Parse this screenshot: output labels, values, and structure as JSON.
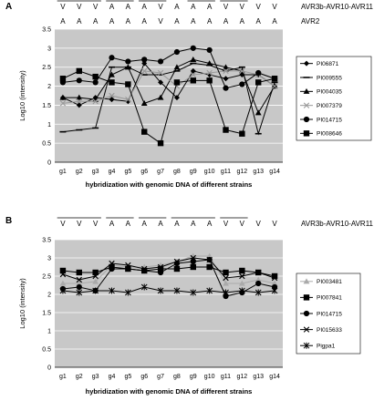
{
  "panels": [
    {
      "letter": "A",
      "annotations": [
        {
          "name": "AVR3b-AVR10-AVR11",
          "marks": [
            "V",
            "V",
            "V",
            "A",
            "A",
            "A",
            "V",
            "A",
            "A",
            "A",
            "V",
            "V",
            "V",
            "V"
          ],
          "underline_groups": [
            [
              1,
              3
            ],
            [
              4,
              5
            ],
            [
              6,
              7
            ],
            [
              9,
              10
            ],
            [
              11,
              12
            ]
          ]
        },
        {
          "name": "AVR2",
          "marks": [
            "A",
            "A",
            "A",
            "A",
            "A",
            "A",
            "V",
            "A",
            "A",
            "A",
            "A",
            "A",
            "A",
            "A"
          ],
          "underline_groups": []
        }
      ],
      "chart_data": {
        "type": "line",
        "categories": [
          "g1",
          "g2",
          "g3",
          "g4",
          "g5",
          "g6",
          "g7",
          "g8",
          "g9",
          "g10",
          "g11",
          "g12",
          "g13",
          "g14"
        ],
        "xlabel": "hybridization with genomic DNA of different strains",
        "ylabel": "Log10 (intensity)",
        "ylim": [
          0,
          3.5
        ],
        "yticks": [
          "0",
          "0.5",
          "1",
          "1.5",
          "2",
          "2.5",
          "3",
          "3.5"
        ],
        "grid": true,
        "legend_position": "right",
        "series": [
          {
            "name": "PI06871",
            "marker": "diamond",
            "color": "#000000",
            "values": [
              1.7,
              1.5,
              1.7,
              1.65,
              1.6,
              2.6,
              2.1,
              1.7,
              2.4,
              2.3,
              2.2,
              2.3,
              2.3,
              2.0
            ]
          },
          {
            "name": "PI009555",
            "marker": "dash",
            "color": "#000000",
            "values": [
              0.8,
              0.85,
              0.9,
              2.5,
              2.5,
              2.3,
              2.3,
              2.4,
              2.6,
              2.55,
              2.4,
              2.5,
              0.75,
              2.1
            ]
          },
          {
            "name": "PI004035",
            "marker": "triangle",
            "color": "#000000",
            "values": [
              1.7,
              1.7,
              1.65,
              2.3,
              2.5,
              1.55,
              1.7,
              2.5,
              2.7,
              2.6,
              2.5,
              2.4,
              1.3,
              2.0
            ]
          },
          {
            "name": "PI007379",
            "marker": "x",
            "color": "#999999",
            "values": [
              1.55,
              1.6,
              1.6,
              1.75,
              1.65,
              2.4,
              2.35,
              2.0,
              2.3,
              2.35,
              2.4,
              2.4,
              2.3,
              2.0
            ]
          },
          {
            "name": "PI014715",
            "marker": "circle",
            "color": "#000000",
            "values": [
              2.1,
              2.15,
              2.1,
              2.75,
              2.65,
              2.7,
              2.65,
              2.9,
              3.0,
              2.95,
              1.95,
              2.05,
              2.35,
              2.2
            ]
          },
          {
            "name": "PI008646",
            "marker": "square",
            "color": "#000000",
            "values": [
              2.2,
              2.4,
              2.25,
              2.1,
              2.05,
              0.8,
              0.5,
              2.1,
              2.15,
              2.15,
              0.85,
              0.75,
              2.1,
              2.2
            ]
          }
        ]
      }
    },
    {
      "letter": "B",
      "annotations": [
        {
          "name": "AVR3b-AVR10-AVR11",
          "marks": [
            "V",
            "V",
            "V",
            "A",
            "A",
            "A",
            "A",
            "A",
            "A",
            "A",
            "V",
            "V",
            "V",
            "V"
          ],
          "underline_groups": [
            [
              1,
              3
            ],
            [
              4,
              5
            ],
            [
              6,
              7
            ],
            [
              8,
              10
            ],
            [
              11,
              12
            ]
          ]
        }
      ],
      "chart_data": {
        "type": "line",
        "categories": [
          "g1",
          "g2",
          "g3",
          "g4",
          "g5",
          "g6",
          "g7",
          "g8",
          "g9",
          "g10",
          "g11",
          "g12",
          "g13",
          "g14"
        ],
        "xlabel": "hybridization with genomic DNA of different strains",
        "ylabel": "Log10 (intensity)",
        "ylim": [
          0,
          3.5
        ],
        "yticks": [
          "0",
          "0.5",
          "1",
          "1.5",
          "2",
          "2.5",
          "3",
          "3.5"
        ],
        "grid": true,
        "legend_position": "right",
        "series": [
          {
            "name": "PI003481",
            "marker": "triangle",
            "color": "#aaaaaa",
            "values": [
              2.3,
              2.3,
              2.35,
              2.8,
              2.75,
              2.75,
              2.8,
              2.9,
              3.05,
              3.05,
              2.3,
              2.3,
              2.4,
              2.3
            ]
          },
          {
            "name": "PI007841",
            "marker": "square",
            "color": "#000000",
            "values": [
              2.65,
              2.6,
              2.6,
              2.75,
              2.7,
              2.65,
              2.7,
              2.7,
              2.75,
              2.75,
              2.6,
              2.65,
              2.6,
              2.5
            ]
          },
          {
            "name": "PI014715",
            "marker": "circle",
            "color": "#000000",
            "values": [
              2.15,
              2.2,
              2.1,
              2.7,
              2.7,
              2.65,
              2.6,
              2.85,
              2.9,
              2.95,
              1.95,
              2.05,
              2.3,
              2.2
            ]
          },
          {
            "name": "PI015633",
            "marker": "x",
            "color": "#000000",
            "values": [
              2.55,
              2.4,
              2.5,
              2.85,
              2.8,
              2.7,
              2.75,
              2.9,
              3.0,
              2.95,
              2.45,
              2.5,
              2.6,
              2.45
            ]
          },
          {
            "name": "Pigpa1",
            "marker": "star",
            "color": "#000000",
            "values": [
              2.1,
              2.05,
              2.1,
              2.1,
              2.05,
              2.2,
              2.1,
              2.1,
              2.05,
              2.1,
              2.05,
              2.1,
              2.05,
              2.1
            ]
          }
        ]
      }
    }
  ]
}
